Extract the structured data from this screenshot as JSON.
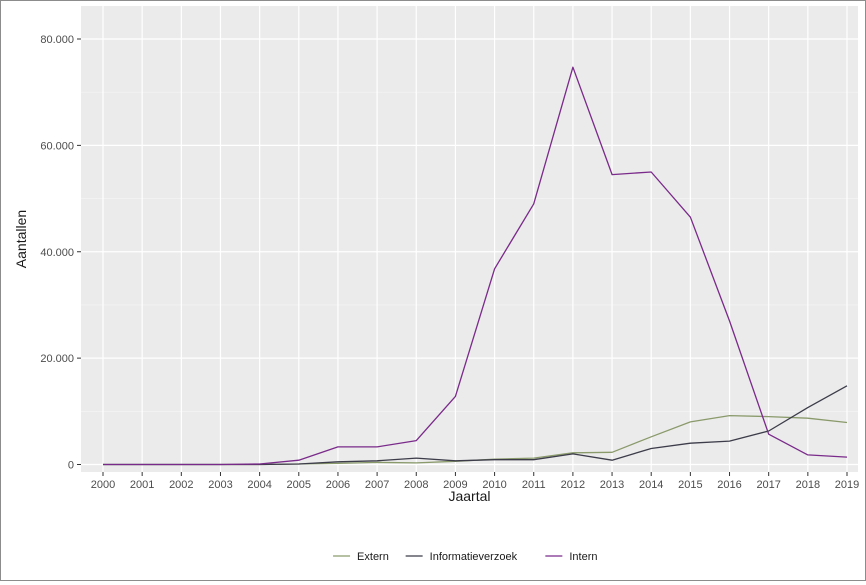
{
  "chart_data": {
    "type": "line",
    "xlabel": "Jaartal",
    "ylabel": "Aantallen",
    "ylim": [
      0,
      80000
    ],
    "y_ticks": [
      0,
      20000,
      40000,
      60000,
      80000
    ],
    "y_tick_labels": [
      "0",
      "20.000",
      "40.000",
      "60.000",
      "80.000"
    ],
    "x": [
      "2000",
      "2001",
      "2002",
      "2003",
      "2004",
      "2005",
      "2006",
      "2007",
      "2008",
      "2009",
      "2010",
      "2011",
      "2012",
      "2013",
      "2014",
      "2015",
      "2016",
      "2017",
      "2018",
      "2019"
    ],
    "grid": true,
    "legend_position": "bottom",
    "background": "#ebebeb",
    "series": [
      {
        "name": "Extern",
        "color": "#8a9a6b",
        "values": [
          0,
          0,
          0,
          0,
          0,
          100,
          200,
          400,
          300,
          600,
          1000,
          1200,
          2200,
          2300,
          5200,
          8000,
          9200,
          9000,
          8700,
          7900
        ]
      },
      {
        "name": "Informatieverzoek",
        "color": "#3c3c4a",
        "values": [
          0,
          0,
          0,
          0,
          0,
          100,
          500,
          700,
          1200,
          700,
          900,
          900,
          2000,
          800,
          3000,
          4000,
          4400,
          6300,
          10700,
          14800
        ]
      },
      {
        "name": "Intern",
        "color": "#7a2a8a",
        "values": [
          0,
          0,
          0,
          0,
          100,
          800,
          3300,
          3300,
          4500,
          12800,
          36800,
          49000,
          74700,
          54500,
          55000,
          46500,
          27000,
          5700,
          1800,
          1400
        ]
      }
    ]
  }
}
